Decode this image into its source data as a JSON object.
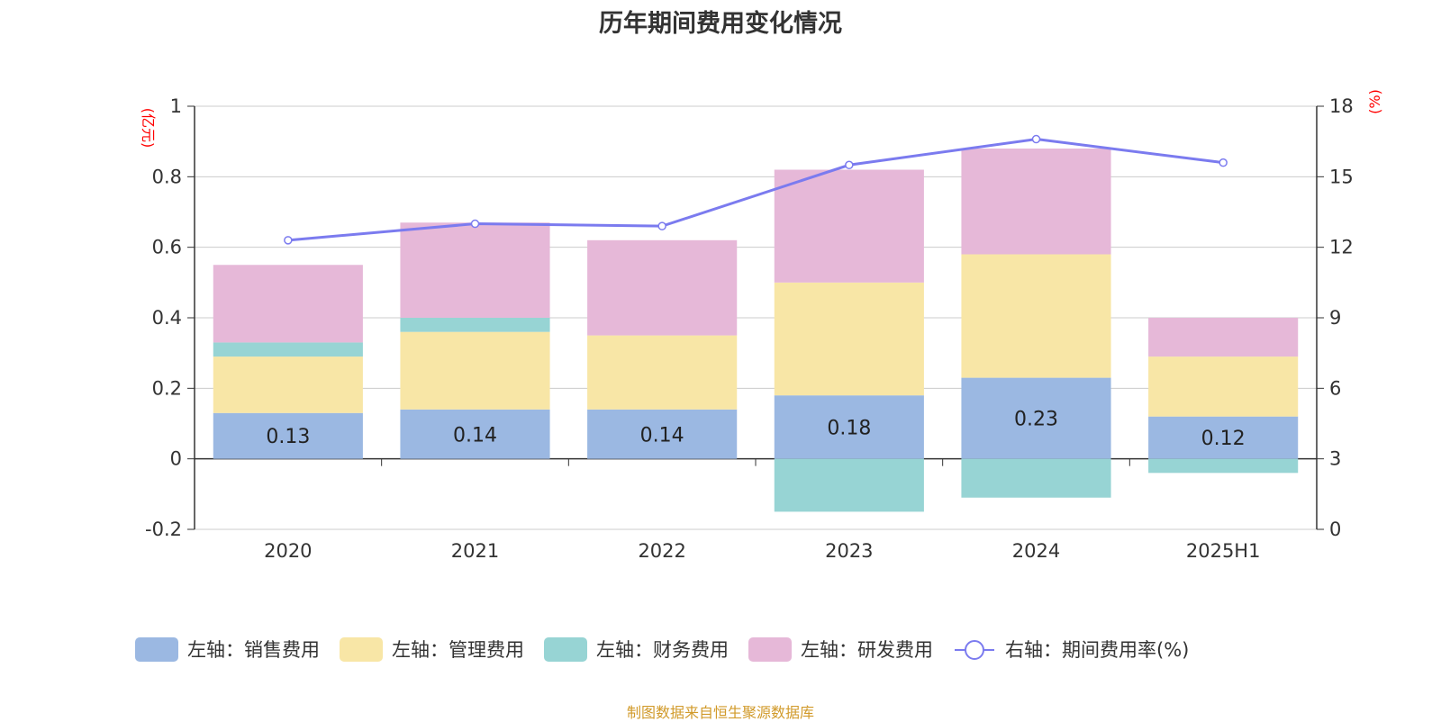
{
  "title": "历年期间费用变化情况",
  "source": "制图数据来自恒生聚源数据库",
  "colors": {
    "sales": "#9bb8e2",
    "admin": "#f8e6a6",
    "finance": "#97d4d4",
    "rd": "#e6b8d8",
    "rate": "#7b7bef",
    "unit": "#ff0000",
    "source": "#d19a2a"
  },
  "chart_data": {
    "type": "bar",
    "stacked": true,
    "categories": [
      "2020",
      "2021",
      "2022",
      "2023",
      "2024",
      "2025H1"
    ],
    "y_left": {
      "unit": "(亿元)",
      "ylim": [
        -0.2,
        1
      ],
      "ticks": [
        "-0.2",
        "0",
        "0.2",
        "0.4",
        "0.6",
        "0.8",
        "1"
      ]
    },
    "y_right": {
      "unit": "(%)",
      "ylim": [
        0,
        18
      ],
      "ticks": [
        "0",
        "3",
        "6",
        "9",
        "12",
        "15",
        "18"
      ]
    },
    "series": [
      {
        "name": "左轴：销售费用",
        "key": "sales",
        "axis": "left",
        "values": [
          0.13,
          0.14,
          0.14,
          0.18,
          0.23,
          0.12
        ],
        "labels": [
          "0.13",
          "0.14",
          "0.14",
          "0.18",
          "0.23",
          "0.12"
        ]
      },
      {
        "name": "左轴：管理费用",
        "key": "admin",
        "axis": "left",
        "values": [
          0.16,
          0.22,
          0.21,
          0.32,
          0.35,
          0.17
        ]
      },
      {
        "name": "左轴：财务费用",
        "key": "finance",
        "axis": "left",
        "values": [
          0.04,
          0.04,
          0.0,
          -0.15,
          -0.11,
          -0.04
        ]
      },
      {
        "name": "左轴：研发费用",
        "key": "rd",
        "axis": "left",
        "values": [
          0.22,
          0.27,
          0.27,
          0.32,
          0.3,
          0.11
        ]
      },
      {
        "name": "右轴：期间费用率(%)",
        "key": "rate",
        "axis": "right",
        "type": "line",
        "values": [
          12.3,
          13.0,
          12.9,
          15.5,
          16.6,
          15.6
        ]
      }
    ],
    "grid": true,
    "legend_position": "bottom"
  }
}
